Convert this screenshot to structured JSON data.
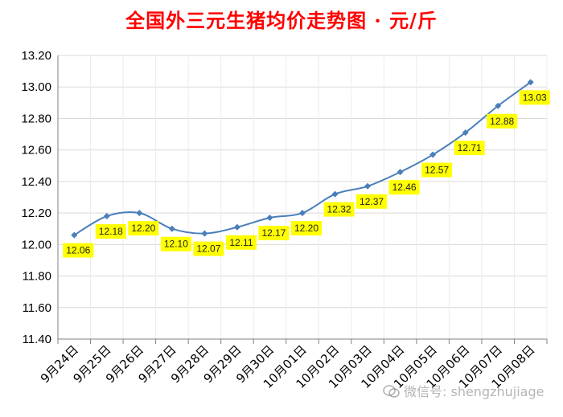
{
  "colors": {
    "title": "#ff0000",
    "line": "#4a7ebb",
    "label_bg": "#ffff00",
    "grid": "#d9d9d9"
  },
  "watermark": {
    "text": "微信号: shengzhujiage",
    "icon": "wechat-icon"
  },
  "chart_data": {
    "type": "line",
    "title": "全国外三元生猪均价走势图 · 元/斤",
    "xlabel": "",
    "ylabel": "",
    "categories": [
      "9月24日",
      "9月25日",
      "9月26日",
      "9月27日",
      "9月28日",
      "9月29日",
      "9月30日",
      "10月01日",
      "10月02日",
      "10月03日",
      "10月04日",
      "10月05日",
      "10月06日",
      "10月07日",
      "10月08日"
    ],
    "series": [
      {
        "values": [
          12.06,
          12.18,
          12.2,
          12.1,
          12.07,
          12.11,
          12.17,
          12.2,
          12.32,
          12.37,
          12.46,
          12.57,
          12.71,
          12.88,
          13.03
        ]
      }
    ],
    "data_labels": [
      "12.06",
      "12.18",
      "12.20",
      "12.10",
      "12.07",
      "12.11",
      "12.17",
      "12.20",
      "12.32",
      "12.37",
      "12.46",
      "12.57",
      "12.71",
      "12.88",
      "13.03"
    ],
    "yticks": [
      "11.40",
      "11.60",
      "11.80",
      "12.00",
      "12.20",
      "12.40",
      "12.60",
      "12.80",
      "13.00",
      "13.20"
    ],
    "ylim": [
      11.4,
      13.2
    ],
    "grid": true,
    "legend": "none"
  }
}
